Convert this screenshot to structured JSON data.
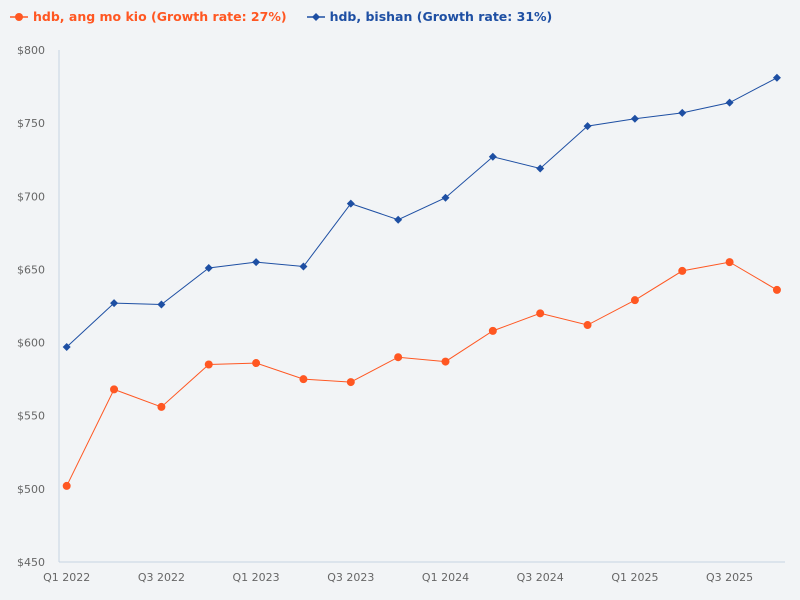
{
  "chart_data": {
    "type": "line",
    "title": "",
    "xlabel": "",
    "ylabel": "",
    "x": [
      "Q1 2022",
      "Q2 2022",
      "Q3 2022",
      "Q4 2022",
      "Q1 2023",
      "Q2 2023",
      "Q3 2023",
      "Q4 2023",
      "Q1 2024",
      "Q2 2024",
      "Q3 2024",
      "Q4 2024",
      "Q1 2025",
      "Q2 2025",
      "Q3 2025",
      "Q4 2025"
    ],
    "x_tick_labels": [
      "Q1 2022",
      "Q3 2022",
      "Q1 2023",
      "Q3 2023",
      "Q1 2024",
      "Q3 2024",
      "Q1 2025",
      "Q3 2025"
    ],
    "ylim": [
      450,
      800
    ],
    "y_ticks": [
      450,
      500,
      550,
      600,
      650,
      700,
      750,
      800
    ],
    "y_tick_labels": [
      "$450",
      "$500",
      "$550",
      "$600",
      "$650",
      "$700",
      "$750",
      "$800"
    ],
    "grid": false,
    "legend_position": "top-left",
    "series": [
      {
        "name": "hdb, ang mo kio (Growth rate: 27%)",
        "color": "#ff5722",
        "marker": "circle",
        "values": [
          502,
          568,
          556,
          585,
          586,
          575,
          573,
          590,
          587,
          608,
          620,
          612,
          629,
          649,
          655,
          636
        ]
      },
      {
        "name": "hdb, bishan (Growth rate: 31%)",
        "color": "#1e4fa3",
        "marker": "diamond",
        "values": [
          597,
          627,
          626,
          651,
          655,
          652,
          695,
          684,
          699,
          727,
          719,
          748,
          753,
          757,
          764,
          781
        ]
      }
    ]
  }
}
